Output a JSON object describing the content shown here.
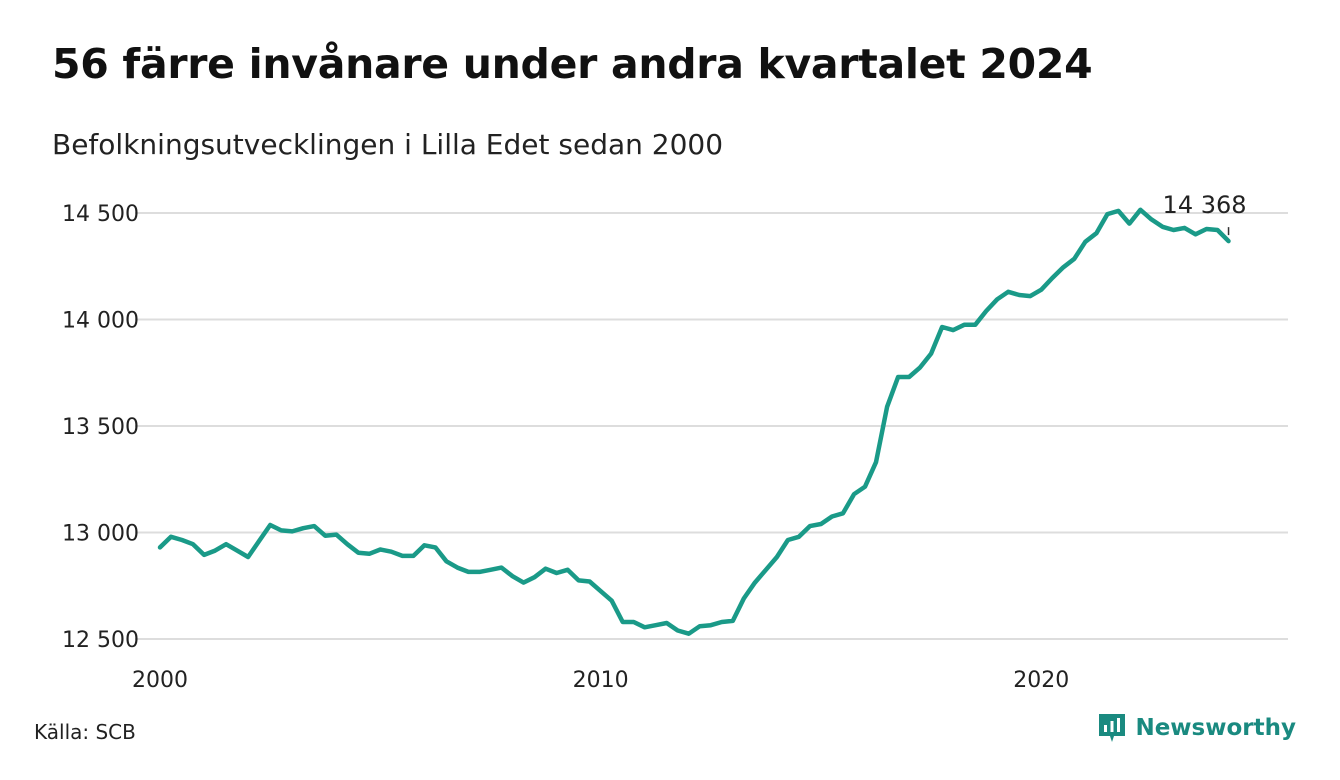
{
  "title": "56 färre invånare under andra kvartalet 2024",
  "subtitle": "Befolkningsutvecklingen i Lilla Edet sedan 2000",
  "source": "Källa: SCB",
  "brand": {
    "name": "Newsworthy",
    "icon": "newsworthy-logo-icon",
    "color": "#1a8a80"
  },
  "chart_data": {
    "type": "line",
    "grid": true,
    "line_color": "#1a9a88",
    "ylim": [
      12500,
      14600
    ],
    "xlim": [
      2000,
      2025.1
    ],
    "y_ticks": [
      12500,
      13000,
      13500,
      14000,
      14500
    ],
    "y_tick_labels": [
      "12 500",
      "13 000",
      "13 500",
      "14 000",
      "14 500"
    ],
    "x_ticks": [
      2000,
      2010,
      2020
    ],
    "x_tick_labels": [
      "2000",
      "2010",
      "2020"
    ],
    "end_label": "14 368",
    "series": [
      {
        "x": [
          2000.0,
          2000.25,
          2000.5,
          2000.75,
          2001.0,
          2001.25,
          2001.5,
          2001.75,
          2002.0,
          2002.25,
          2002.5,
          2002.75,
          2003.0,
          2003.25,
          2003.5,
          2003.75,
          2004.0,
          2004.25,
          2004.5,
          2004.75,
          2005.0,
          2005.25,
          2005.5,
          2005.75,
          2006.0,
          2006.25,
          2006.5,
          2006.75,
          2007.0,
          2007.25,
          2007.5,
          2007.75,
          2008.0,
          2008.25,
          2008.5,
          2008.75,
          2009.0,
          2009.25,
          2009.5,
          2009.75,
          2010.0,
          2010.25,
          2010.5,
          2010.75,
          2011.0,
          2011.25,
          2011.5,
          2011.75,
          2012.0,
          2012.25,
          2012.5,
          2012.75,
          2013.0,
          2013.25,
          2013.5,
          2013.75,
          2014.0,
          2014.25,
          2014.5,
          2014.75,
          2015.0,
          2015.25,
          2015.5,
          2015.75,
          2016.0,
          2016.25,
          2016.5,
          2016.75,
          2017.0,
          2017.25,
          2017.5,
          2017.75,
          2018.0,
          2018.25,
          2018.5,
          2018.75,
          2019.0,
          2019.25,
          2019.5,
          2019.75,
          2020.0,
          2020.25,
          2020.5,
          2020.75,
          2021.0,
          2021.25,
          2021.5,
          2021.75,
          2022.0,
          2022.25,
          2022.5,
          2022.75,
          2023.0,
          2023.25,
          2023.5,
          2023.75,
          2024.0,
          2024.25
        ],
        "values": [
          12930,
          12980,
          12965,
          12945,
          12895,
          12915,
          12945,
          12915,
          12885,
          12960,
          13035,
          13010,
          13005,
          13020,
          13030,
          12985,
          12990,
          12945,
          12905,
          12900,
          12920,
          12910,
          12890,
          12890,
          12940,
          12930,
          12865,
          12835,
          12815,
          12815,
          12825,
          12835,
          12795,
          12765,
          12790,
          12830,
          12810,
          12825,
          12775,
          12770,
          12725,
          12680,
          12580,
          12580,
          12555,
          12565,
          12575,
          12540,
          12525,
          12560,
          12565,
          12580,
          12585,
          12690,
          12765,
          12825,
          12885,
          12965,
          12980,
          13030,
          13040,
          13075,
          13090,
          13180,
          13215,
          13330,
          13590,
          13730,
          13730,
          13775,
          13840,
          13965,
          13950,
          13975,
          13975,
          14040,
          14095,
          14130,
          14115,
          14110,
          14140,
          14195,
          14245,
          14285,
          14365,
          14405,
          14495,
          14510,
          14450,
          14515,
          14470,
          14435,
          14420,
          14430,
          14400,
          14425,
          14420,
          14368
        ]
      }
    ]
  }
}
